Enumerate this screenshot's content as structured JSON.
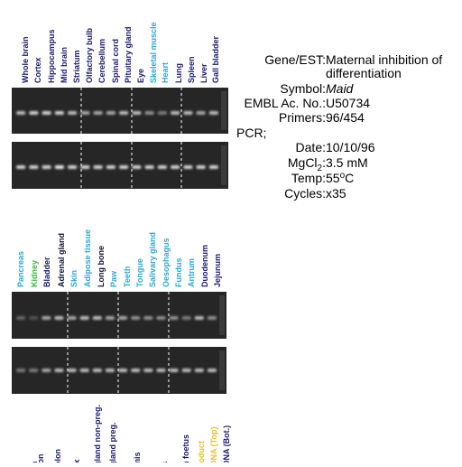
{
  "panel_top": {
    "labels": [
      {
        "text": "Whole brain",
        "color": "#1a1a6e"
      },
      {
        "text": "Cortex",
        "color": "#1a1a6e"
      },
      {
        "text": "Hippocampus",
        "color": "#1a1a6e"
      },
      {
        "text": "Mid brain",
        "color": "#1a1a6e"
      },
      {
        "text": "Striatum",
        "color": "#1a1a6e"
      },
      {
        "text": "Olfactory bulb",
        "color": "#1a1a6e"
      },
      {
        "text": "Cerebellum",
        "color": "#1a1a6e"
      },
      {
        "text": "Spinal cord",
        "color": "#1a1a6e"
      },
      {
        "text": "Pituitary gland",
        "color": "#1a1a6e"
      },
      {
        "text": "Eye",
        "color": "#1a1a6e"
      },
      {
        "text": "Skeletal muscle",
        "color": "#2aa8d8"
      },
      {
        "text": "Heart",
        "color": "#2aa8d8"
      },
      {
        "text": "Lung",
        "color": "#1a1a6e"
      },
      {
        "text": "Spleen",
        "color": "#1a1a6e"
      },
      {
        "text": "Liver",
        "color": "#1a1a6e"
      },
      {
        "text": "Gall bladder",
        "color": "#1a1a6e"
      }
    ]
  },
  "panel_middle": {
    "labels": [
      {
        "text": "Pancreas",
        "color": "#2aa8d8"
      },
      {
        "text": "Kidney",
        "color": "#3cb83c"
      },
      {
        "text": "Bladder",
        "color": "#1a1a6e"
      },
      {
        "text": "Adrenal gland",
        "color": "#111133"
      },
      {
        "text": "Skin",
        "color": "#2aa8d8"
      },
      {
        "text": "Adipose tissue",
        "color": "#2aa8d8"
      },
      {
        "text": "Long bone",
        "color": "#111133"
      },
      {
        "text": "Paw",
        "color": "#2aa8d8"
      },
      {
        "text": "Teeth",
        "color": "#2aa8d8"
      },
      {
        "text": "Tongue",
        "color": "#2aa8d8"
      },
      {
        "text": "Salivary gland",
        "color": "#2aa8d8"
      },
      {
        "text": "Oesophagus",
        "color": "#2aa8d8"
      },
      {
        "text": "Fundus",
        "color": "#2aa8d8"
      },
      {
        "text": "Antrum",
        "color": "#2aa8d8"
      },
      {
        "text": "Duodenum",
        "color": "#1a1a6e"
      },
      {
        "text": "Jejunum",
        "color": "#1a1a6e"
      }
    ]
  },
  "panel_bottom": {
    "labels": [
      {
        "text": "n",
        "color": "#1a1a6e"
      },
      {
        "text": "lon",
        "color": "#1a1a6e"
      },
      {
        "text": "olon",
        "color": "#1a1a6e"
      },
      {
        "text": "ix",
        "color": "#1a1a6e"
      },
      {
        "text": "gland non-preg.",
        "color": "#1a1a6e"
      },
      {
        "text": "gland preg.",
        "color": "#1a1a6e"
      },
      {
        "text": "mis",
        "color": "#1a1a6e"
      },
      {
        "text": "a",
        "color": "#1a1a6e"
      },
      {
        "text": "n foetus",
        "color": "#1a1a6e"
      },
      {
        "text": "roduct",
        "color": "#e8c030"
      },
      {
        "text": "DNA (Top)",
        "color": "#e8c030"
      },
      {
        "text": "DNA (Bot.)",
        "color": "#1a1a6e"
      }
    ]
  },
  "info": {
    "gene": {
      "label": "Gene/EST:",
      "value": [
        "Maternal inhibition of",
        "differentiation"
      ]
    },
    "symbol": {
      "label": "Symbol:",
      "value": "Maid"
    },
    "embl": {
      "label": "EMBL Ac. No.:",
      "value": "U50734"
    },
    "primers": {
      "label": "Primers:",
      "value": "96/454"
    },
    "pcr": "PCR;",
    "date": {
      "label": "Date:",
      "value": "10/10/96"
    },
    "mgcl": {
      "label": "MgCl",
      "label_sub": "2",
      "colon": ":",
      "value": "3.5 mM"
    },
    "temp": {
      "label": "Temp:",
      "value": "55",
      "value_sup": "o",
      "value_suffix": "C"
    },
    "cycles": {
      "label": "Cycles:",
      "value": "x35"
    }
  }
}
